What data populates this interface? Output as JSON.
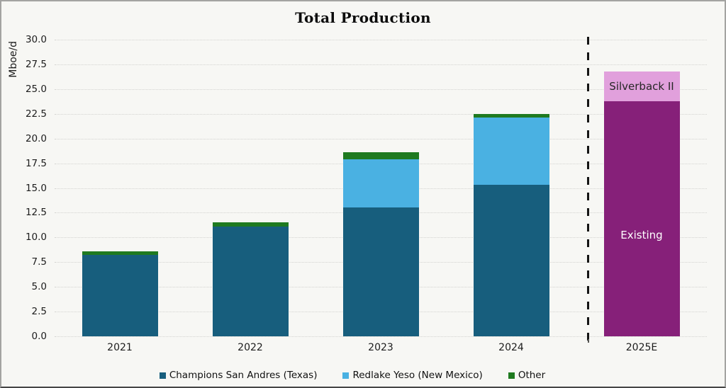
{
  "title": "Total Production",
  "y_axis": {
    "label": "Mboe/d",
    "ticks": [
      "0.0",
      "2.5",
      "5.0",
      "7.5",
      "10.0",
      "12.5",
      "15.0",
      "17.5",
      "20.0",
      "22.5",
      "25.0",
      "27.5",
      "30.0"
    ]
  },
  "chart_data": {
    "type": "bar",
    "stacked": true,
    "title": "Total Production",
    "ylabel": "Mboe/d",
    "ylim": [
      0,
      30
    ],
    "ytick_step": 2.5,
    "grid": "horizontal-dotted",
    "legend_position": "bottom-center",
    "categories": [
      "2021",
      "2022",
      "2023",
      "2024",
      "2025E"
    ],
    "series": [
      {
        "name": "Champions San Andres (Texas)",
        "color": "#175e7d",
        "values": [
          8.2,
          11.1,
          13.0,
          15.3,
          0
        ],
        "in_legend": true
      },
      {
        "name": "Redlake Yeso (New Mexico)",
        "color": "#4ab1e2",
        "values": [
          0,
          0,
          4.9,
          6.8,
          0
        ],
        "in_legend": true
      },
      {
        "name": "Other",
        "color": "#1f7a20",
        "values": [
          0.4,
          0.4,
          0.7,
          0.4,
          0
        ],
        "in_legend": true
      },
      {
        "name": "Existing",
        "color": "#862079",
        "values": [
          0,
          0,
          0,
          0,
          23.8
        ],
        "in_legend": false,
        "in_bar_label": true,
        "label_color": "#ffffff",
        "label_pos_pct": 57
      },
      {
        "name": "Silverback II",
        "color": "#e1a0dc",
        "values": [
          0,
          0,
          0,
          0,
          3.0
        ],
        "in_legend": false,
        "in_bar_label": true,
        "label_color": "#262626",
        "label_pos_pct": 50
      }
    ],
    "annotations": {
      "separator": "dashed vertical line between 2024 and 2025E"
    }
  },
  "legend": {
    "items": [
      {
        "label": "Champions San Andres (Texas)",
        "color": "#175e7d"
      },
      {
        "label": "Redlake Yeso (New Mexico)",
        "color": "#4ab1e2"
      },
      {
        "label": "Other",
        "color": "#1f7a20"
      }
    ]
  }
}
